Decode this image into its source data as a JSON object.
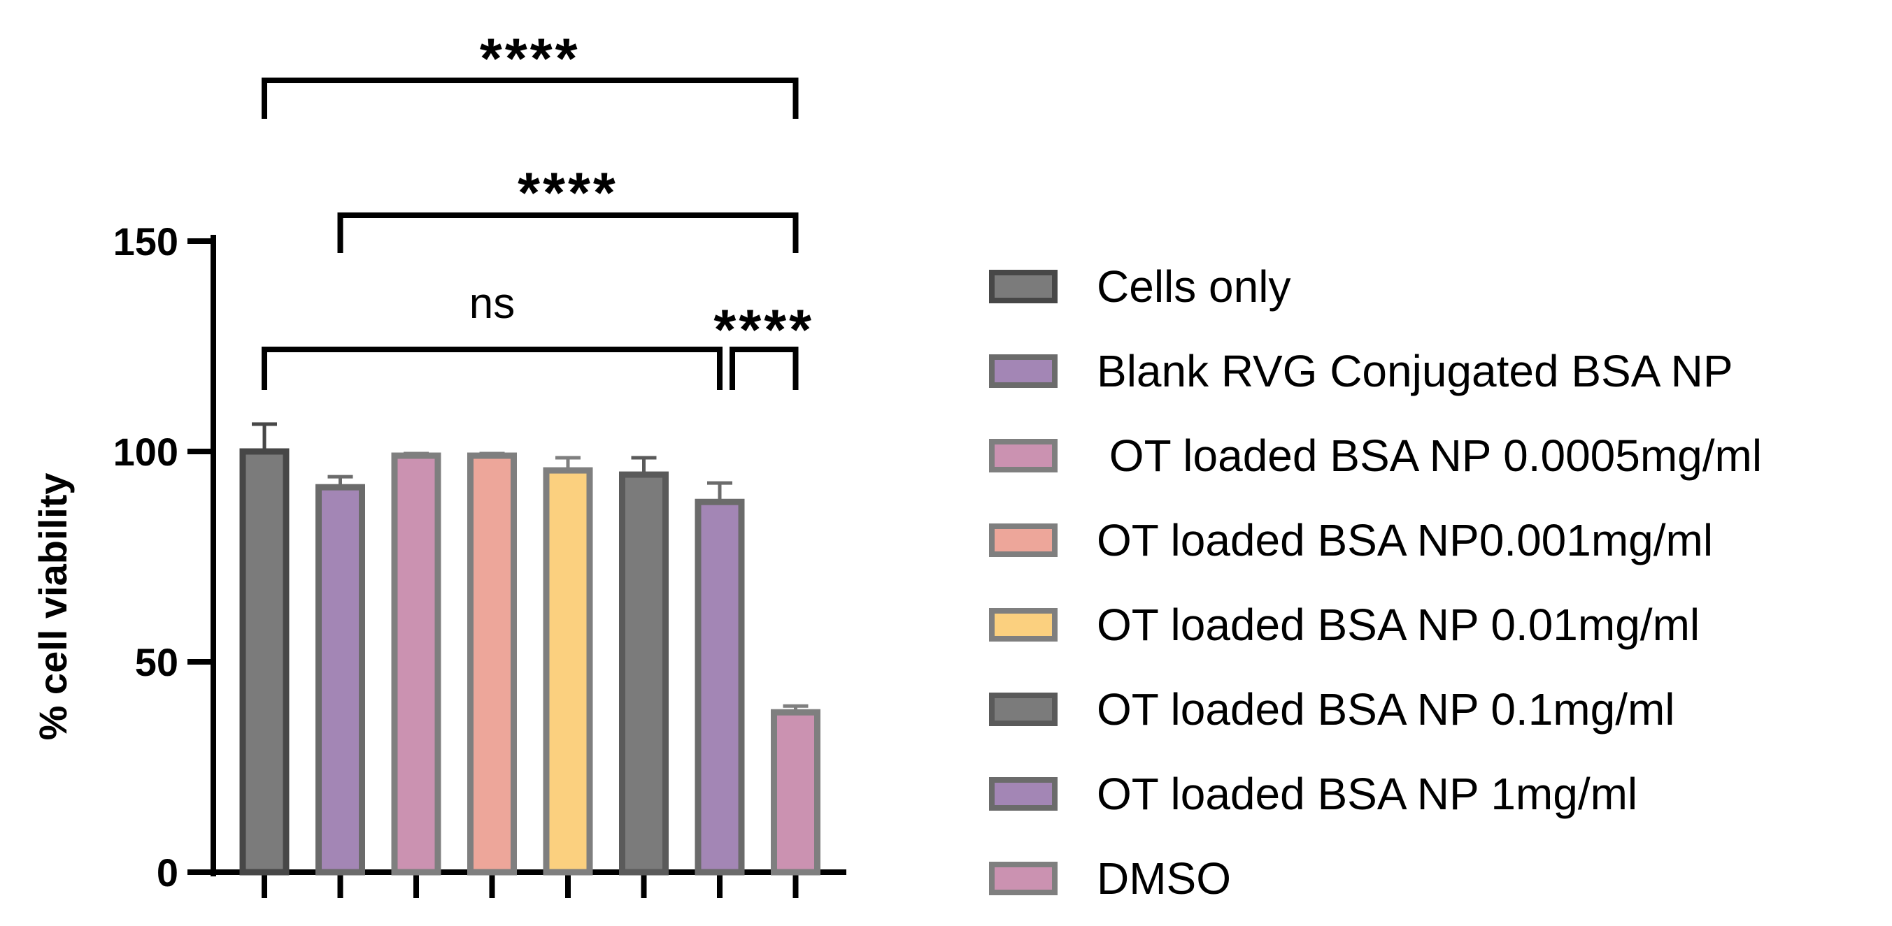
{
  "chart_data": {
    "type": "bar",
    "title": "",
    "xlabel": "",
    "ylabel": "% cell viability",
    "ylim": [
      0,
      150
    ],
    "yticks": [
      0,
      50,
      100,
      150
    ],
    "categories": [
      "Cells only",
      "Blank RVG Conjugated BSA NP",
      " OT loaded BSA NP 0.0005mg/ml",
      "OT loaded BSA NP0.001mg/ml",
      "OT loaded BSA NP 0.01mg/ml",
      "OT loaded BSA NP 0.1mg/ml",
      "OT loaded BSA NP 1mg/ml",
      "DMSO"
    ],
    "values": [
      100,
      91.5,
      99,
      99,
      95.5,
      94.5,
      88,
      38
    ],
    "errors": [
      6.5,
      2.5,
      0.5,
      0.5,
      3,
      4,
      4.5,
      1.5
    ],
    "colors": [
      "#7b7b7b",
      "#a386b5",
      "#cb92b1",
      "#eda69a",
      "#fbd07f",
      "#7b7b7b",
      "#a386b5",
      "#cb92b1"
    ],
    "edge_colors": [
      "#474747",
      "#6b6b6b",
      "#7f7f7f",
      "#7f7f7f",
      "#7f7f7f",
      "#5a5a5a",
      "#6b6b6b",
      "#7f7f7f"
    ],
    "significance": [
      {
        "from": 0,
        "to": 7,
        "label": "****"
      },
      {
        "from": 1,
        "to": 7,
        "label": "****"
      },
      {
        "from": 0,
        "to": 6,
        "label": "ns"
      },
      {
        "from": 6,
        "to": 7,
        "label": "****"
      }
    ],
    "legend_position": "right"
  }
}
